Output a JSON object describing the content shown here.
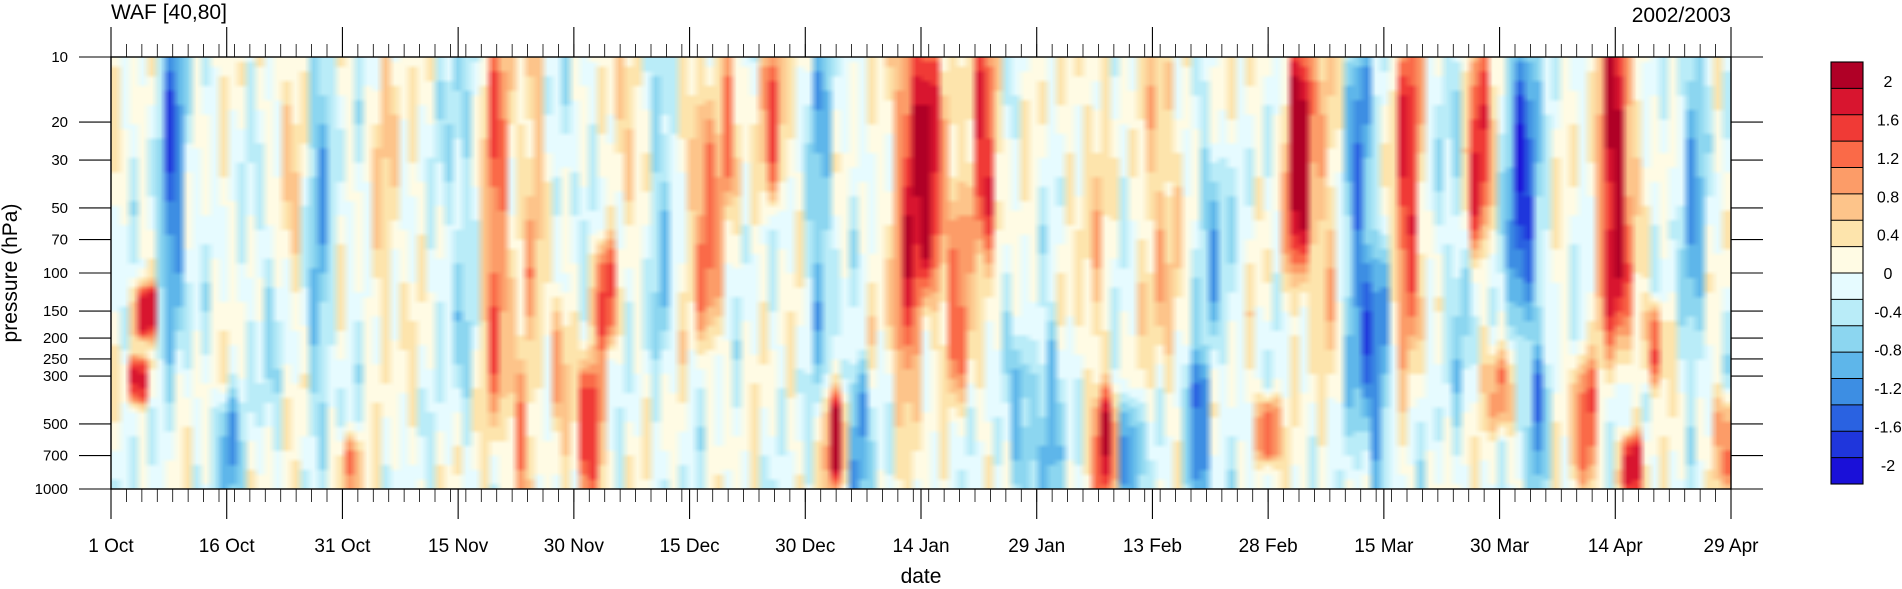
{
  "chart_data": {
    "type": "heatmap",
    "title_left": "WAF [40,80]",
    "title_right": "2002/2003",
    "xlabel": "date",
    "ylabel": "pressure (hPa)",
    "x_ticks": [
      "1 Oct",
      "16 Oct",
      "31 Oct",
      "15 Nov",
      "30 Nov",
      "15 Dec",
      "30 Dec",
      "14 Jan",
      "29 Jan",
      "13 Feb",
      "28 Feb",
      "15 Mar",
      "30 Mar",
      "14 Apr",
      "29 Apr"
    ],
    "x_days": [
      0,
      15,
      30,
      45,
      60,
      75,
      90,
      105,
      120,
      135,
      150,
      165,
      180,
      195,
      210
    ],
    "y_scale": "log",
    "y_ticks": [
      10,
      20,
      30,
      50,
      70,
      100,
      150,
      200,
      250,
      300,
      500,
      700,
      1000
    ],
    "y_range": [
      1000,
      10
    ],
    "colorbar_labels": [
      "2",
      "1.6",
      "1.2",
      "0.8",
      "0.4",
      "0",
      "-0.4",
      "-0.8",
      "-1.2",
      "-1.6",
      "-2"
    ],
    "colorbar_range": [
      -2.2,
      2.2
    ],
    "colorbar_levels": [
      "#b00026",
      "#d8152f",
      "#f03a36",
      "#fa6a48",
      "#fc9c68",
      "#fdc48a",
      "#fde4ac",
      "#fffbe4",
      "#e6fbff",
      "#b9ecf8",
      "#8cd6f0",
      "#5eb6ea",
      "#3d8ee3",
      "#2a62e1",
      "#1f36dc",
      "#1a10d8"
    ],
    "anomaly_events": [
      {
        "day": 4.5,
        "p_top": 120,
        "p_bot": 190,
        "amp": 2.0
      },
      {
        "day": 3.5,
        "p_top": 260,
        "p_bot": 380,
        "amp": 1.8
      },
      {
        "day": 8,
        "p_top": 10,
        "p_bot": 150,
        "amp": -1.4
      },
      {
        "day": 15,
        "p_top": 400,
        "p_bot": 1000,
        "amp": -1.2
      },
      {
        "day": 20,
        "p_top": 40,
        "p_bot": 400,
        "amp": -0.5
      },
      {
        "day": 23,
        "p_top": 10,
        "p_bot": 100,
        "amp": 0.6
      },
      {
        "day": 27,
        "p_top": 10,
        "p_bot": 300,
        "amp": -0.8
      },
      {
        "day": 31,
        "p_top": 600,
        "p_bot": 1000,
        "amp": 1.2
      },
      {
        "day": 36,
        "p_top": 10,
        "p_bot": 200,
        "amp": 0.5
      },
      {
        "day": 45,
        "p_top": 10,
        "p_bot": 300,
        "amp": -0.6
      },
      {
        "day": 50,
        "p_top": 10,
        "p_bot": 300,
        "amp": 1.2
      },
      {
        "day": 53,
        "p_top": 300,
        "p_bot": 1000,
        "amp": 0.9
      },
      {
        "day": 55,
        "p_top": 10,
        "p_bot": 200,
        "amp": 0.6
      },
      {
        "day": 58,
        "p_top": 150,
        "p_bot": 400,
        "amp": 0.8
      },
      {
        "day": 59,
        "p_top": 10,
        "p_bot": 50,
        "amp": -0.5
      },
      {
        "day": 62,
        "p_top": 300,
        "p_bot": 1000,
        "amp": 1.9
      },
      {
        "day": 64,
        "p_top": 80,
        "p_bot": 200,
        "amp": 1.4
      },
      {
        "day": 67,
        "p_top": 10,
        "p_bot": 40,
        "amp": 0.9
      },
      {
        "day": 71,
        "p_top": 10,
        "p_bot": 200,
        "amp": -0.6
      },
      {
        "day": 77,
        "p_top": 20,
        "p_bot": 150,
        "amp": 1.4
      },
      {
        "day": 80,
        "p_top": 10,
        "p_bot": 40,
        "amp": 1.0
      },
      {
        "day": 86,
        "p_top": 10,
        "p_bot": 40,
        "amp": 1.3
      },
      {
        "day": 92,
        "p_top": 10,
        "p_bot": 200,
        "amp": -0.8
      },
      {
        "day": 94,
        "p_top": 400,
        "p_bot": 900,
        "amp": 1.8
      },
      {
        "day": 97,
        "p_top": 300,
        "p_bot": 1000,
        "amp": -1.3
      },
      {
        "day": 103,
        "p_top": 10,
        "p_bot": 300,
        "amp": 1.4
      },
      {
        "day": 106,
        "p_top": 10,
        "p_bot": 100,
        "amp": 2.2
      },
      {
        "day": 110,
        "p_top": 50,
        "p_bot": 300,
        "amp": 1.3
      },
      {
        "day": 113,
        "p_top": 10,
        "p_bot": 60,
        "amp": 1.8
      },
      {
        "day": 118,
        "p_top": 250,
        "p_bot": 1000,
        "amp": -1.2
      },
      {
        "day": 122,
        "p_top": 200,
        "p_bot": 1000,
        "amp": -1.0
      },
      {
        "day": 127,
        "p_top": 10,
        "p_bot": 300,
        "amp": 0.5
      },
      {
        "day": 129,
        "p_top": 400,
        "p_bot": 1000,
        "amp": 1.8
      },
      {
        "day": 132,
        "p_top": 400,
        "p_bot": 1000,
        "amp": -1.4
      },
      {
        "day": 136,
        "p_top": 10,
        "p_bot": 200,
        "amp": 0.8
      },
      {
        "day": 141,
        "p_top": 300,
        "p_bot": 1000,
        "amp": -1.6
      },
      {
        "day": 143,
        "p_top": 30,
        "p_bot": 200,
        "amp": -1.0
      },
      {
        "day": 150,
        "p_top": 400,
        "p_bot": 700,
        "amp": 1.8
      },
      {
        "day": 154,
        "p_top": 10,
        "p_bot": 80,
        "amp": 2.2
      },
      {
        "day": 157,
        "p_top": 10,
        "p_bot": 200,
        "amp": 0.6
      },
      {
        "day": 162,
        "p_top": 10,
        "p_bot": 300,
        "amp": -1.2
      },
      {
        "day": 164,
        "p_top": 100,
        "p_bot": 1000,
        "amp": -1.0
      },
      {
        "day": 168,
        "p_top": 10,
        "p_bot": 150,
        "amp": 1.6
      },
      {
        "day": 174,
        "p_top": 10,
        "p_bot": 300,
        "amp": -0.6
      },
      {
        "day": 177,
        "p_top": 10,
        "p_bot": 60,
        "amp": 1.8
      },
      {
        "day": 180,
        "p_top": 250,
        "p_bot": 500,
        "amp": 1.2
      },
      {
        "day": 183,
        "p_top": 10,
        "p_bot": 150,
        "amp": -1.9
      },
      {
        "day": 185,
        "p_top": 300,
        "p_bot": 1000,
        "amp": -1.0
      },
      {
        "day": 191,
        "p_top": 300,
        "p_bot": 900,
        "amp": 1.4
      },
      {
        "day": 195,
        "p_top": 10,
        "p_bot": 150,
        "amp": 2.4
      },
      {
        "day": 197,
        "p_top": 600,
        "p_bot": 1000,
        "amp": 2.0
      },
      {
        "day": 200,
        "p_top": 150,
        "p_bot": 300,
        "amp": 1.5
      },
      {
        "day": 205,
        "p_top": 10,
        "p_bot": 200,
        "amp": -0.9
      },
      {
        "day": 209,
        "p_top": 400,
        "p_bot": 900,
        "amp": 1.2
      }
    ]
  }
}
